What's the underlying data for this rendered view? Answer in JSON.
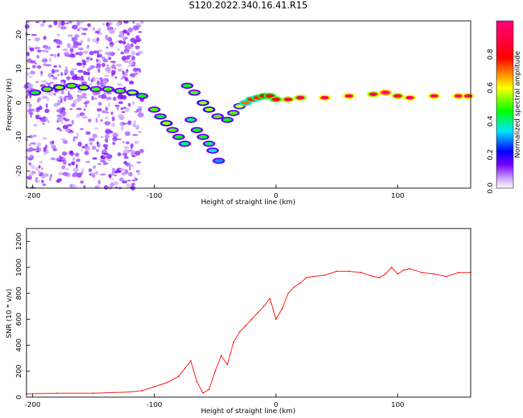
{
  "title": "S120.2022.340.16.41.R15",
  "chart_data": [
    {
      "type": "heatmap",
      "xlabel": "Height of straight line (km)",
      "ylabel": "Frequency (Hz)",
      "xlim": [
        -205,
        160
      ],
      "ylim": [
        -25,
        24
      ],
      "x_ticks": [
        -200,
        -100,
        0,
        100
      ],
      "y_ticks": [
        -20,
        -10,
        0,
        10,
        20
      ],
      "colorbar": {
        "label": "Normalized spectral amplitude",
        "range": [
          0,
          1
        ],
        "ticks": [
          "0.0",
          "0.2",
          "0.4",
          "0.6",
          "0.8"
        ],
        "colormap": [
          "#ffffff",
          "#7a00ff",
          "#0000ff",
          "#00e5ff",
          "#00ff00",
          "#ffff00",
          "#ff0000",
          "#ff0080"
        ]
      },
      "series": [
        {
          "points": [
            [
              -198,
              3,
              0.45
            ],
            [
              -188,
              4,
              0.5
            ],
            [
              -178,
              4.5,
              0.55
            ],
            [
              -168,
              5,
              0.5
            ],
            [
              -158,
              4.5,
              0.55
            ],
            [
              -148,
              4,
              0.5
            ],
            [
              -138,
              4,
              0.5
            ],
            [
              -128,
              3.5,
              0.5
            ],
            [
              -118,
              3,
              0.55
            ],
            [
              -110,
              2,
              0.45
            ],
            [
              -100,
              -2,
              0.5
            ],
            [
              -95,
              -4,
              0.45
            ],
            [
              -90,
              -6,
              0.55
            ],
            [
              -85,
              -8,
              0.5
            ],
            [
              -80,
              -10,
              0.45
            ],
            [
              -75,
              -12,
              0.4
            ],
            [
              -70,
              -5,
              0.4
            ],
            [
              -65,
              -8,
              0.45
            ],
            [
              -60,
              -10,
              0.45
            ],
            [
              -55,
              -12,
              0.4
            ],
            [
              -52,
              -14,
              0.35
            ],
            [
              -47,
              -17,
              0.3
            ],
            [
              -73,
              5,
              0.45
            ],
            [
              -67,
              3,
              0.5
            ],
            [
              -60,
              0,
              0.55
            ],
            [
              -55,
              -2,
              0.55
            ],
            [
              -48,
              -4,
              0.5
            ],
            [
              -40,
              -5,
              0.45
            ],
            [
              -35,
              -3,
              0.5
            ],
            [
              -30,
              -1,
              0.6
            ],
            [
              -25,
              0,
              0.7
            ],
            [
              -20,
              1,
              0.75
            ],
            [
              -15,
              1.5,
              0.75
            ],
            [
              -10,
              2,
              0.8
            ],
            [
              -5,
              2,
              0.8
            ],
            [
              0,
              1,
              0.85
            ],
            [
              10,
              1,
              0.9
            ],
            [
              20,
              1.5,
              0.9
            ],
            [
              40,
              1.5,
              0.95
            ],
            [
              60,
              2,
              0.95
            ],
            [
              80,
              2.5,
              0.9
            ],
            [
              90,
              3,
              1.0
            ],
            [
              100,
              2,
              0.9
            ],
            [
              110,
              1.5,
              0.95
            ],
            [
              130,
              2,
              0.95
            ],
            [
              150,
              2,
              0.95
            ],
            [
              158,
              2,
              0.95
            ]
          ]
        }
      ]
    },
    {
      "type": "line",
      "xlabel": "Height of straight line (km)",
      "ylabel": "SNR (10 * v/v)",
      "xlim": [
        -205,
        160
      ],
      "ylim": [
        0,
        1300
      ],
      "x_ticks": [
        -200,
        -100,
        0,
        100
      ],
      "y_ticks": [
        0,
        200,
        400,
        600,
        800,
        1000,
        1200
      ],
      "color": "#ff0000",
      "x": [
        -205,
        -180,
        -150,
        -120,
        -110,
        -100,
        -90,
        -80,
        -75,
        -70,
        -65,
        -60,
        -55,
        -50,
        -45,
        -40,
        -35,
        -30,
        -25,
        -20,
        -15,
        -10,
        -5,
        0,
        5,
        10,
        15,
        20,
        25,
        30,
        40,
        50,
        60,
        70,
        80,
        85,
        90,
        95,
        100,
        105,
        110,
        120,
        130,
        140,
        150,
        160
      ],
      "y": [
        25,
        30,
        30,
        40,
        50,
        80,
        110,
        160,
        220,
        280,
        120,
        30,
        60,
        200,
        320,
        250,
        420,
        500,
        550,
        600,
        650,
        700,
        760,
        600,
        680,
        800,
        850,
        880,
        920,
        930,
        940,
        970,
        970,
        960,
        930,
        920,
        950,
        1000,
        950,
        980,
        990,
        960,
        950,
        930,
        960,
        960
      ]
    }
  ]
}
